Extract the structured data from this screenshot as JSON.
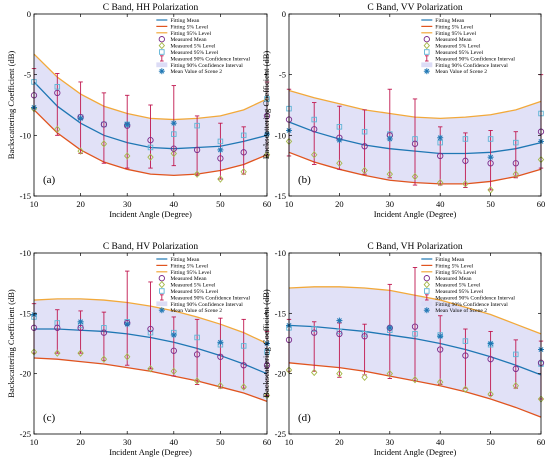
{
  "colors": {
    "mean": "#1f77b4",
    "p5": "#e0541f",
    "p95": "#f2a93b",
    "conf_fill": "#dcdcf6",
    "errbar": "#c0174f",
    "measured_mean": "#7a2a8a",
    "measured_p5": "#a6b84a",
    "measured_p95": "#5fb4d6",
    "scene2": "#1f77b4"
  },
  "legend_labels": [
    "Fitting Mean",
    "Fitting 5% Level",
    "Fitting 95% Level",
    "Measured Mean",
    "Measured 5% Level",
    "Measured 95% Level",
    "Measured 90% Confidence Interval",
    "Fitting 90% Confidence Interval",
    "Mean Value of Scene 2"
  ],
  "chart_data": [
    {
      "type": "line",
      "panel": "(a)",
      "title": "C Band, HH Polarization",
      "xlabel": "Incident Angle (Degree)",
      "ylabel": "Backscattering Coefficient (dB)",
      "xlim": [
        10,
        60
      ],
      "ylim": [
        -15,
        0
      ],
      "xticks": [
        10,
        20,
        30,
        40,
        50,
        60
      ],
      "yticks": [
        0,
        -5,
        -10,
        -15
      ],
      "legend_position": "top-right",
      "fit_x": [
        10,
        15,
        20,
        25,
        30,
        35,
        40,
        45,
        50,
        55,
        60
      ],
      "fit_mean": [
        -5.6,
        -7.6,
        -9.0,
        -10.0,
        -10.6,
        -11.0,
        -11.1,
        -11.0,
        -10.9,
        -10.5,
        -10.0
      ],
      "fit_p5": [
        -7.9,
        -9.8,
        -11.2,
        -12.2,
        -12.8,
        -13.2,
        -13.3,
        -13.2,
        -12.9,
        -12.4,
        -11.6
      ],
      "fit_p95": [
        -3.3,
        -5.2,
        -6.6,
        -7.6,
        -8.2,
        -8.6,
        -8.7,
        -8.6,
        -8.4,
        -7.9,
        -7.0
      ],
      "measured_x": [
        10,
        15,
        20,
        25,
        30,
        35,
        40,
        45,
        50,
        55,
        60
      ],
      "measured_mean": [
        -6.7,
        -6.5,
        -8.5,
        -9.1,
        -9.2,
        -10.4,
        -11.1,
        -11.2,
        -11.9,
        -11.4,
        -8.4
      ],
      "measured_p5": [
        -7.8,
        -9.5,
        -11.3,
        -10.7,
        -11.7,
        -11.8,
        -11.5,
        -13.2,
        -13.6,
        -13.0,
        -11.6
      ],
      "measured_p95": [
        -5.6,
        -6.0,
        -8.5,
        -9.1,
        -9.1,
        -11.0,
        -9.9,
        -9.2,
        -10.5,
        -10.0,
        -7.0
      ],
      "ci_low": [
        -7.8,
        -10.0,
        -11.5,
        -12.3,
        -12.7,
        -12.7,
        -12.5,
        -13.3,
        -13.6,
        -13.2,
        -11.7
      ],
      "ci_high": [
        -4.5,
        -4.9,
        -5.6,
        -6.5,
        -6.7,
        -7.5,
        -5.9,
        -8.4,
        -9.0,
        -9.3,
        -5.6
      ],
      "scene2_x": [
        10,
        20,
        30,
        40,
        50,
        60
      ],
      "scene2_y": [
        -7.7,
        -8.6,
        -9.1,
        -9.0,
        -11.2,
        -9.9
      ]
    },
    {
      "type": "line",
      "panel": "(b)",
      "title": "C Band, VV Polarization",
      "xlabel": "Incident Angle (Degree)",
      "ylabel": "Backscattering Coefficient (dB)",
      "xlim": [
        10,
        60
      ],
      "ylim": [
        -15,
        0
      ],
      "xticks": [
        10,
        20,
        30,
        40,
        50,
        60
      ],
      "yticks": [
        0,
        -5,
        -10,
        -15
      ],
      "legend_position": "top-right",
      "fit_x": [
        10,
        15,
        20,
        25,
        30,
        35,
        40,
        45,
        50,
        55,
        60
      ],
      "fit_mean": [
        -8.9,
        -9.7,
        -10.3,
        -10.8,
        -11.1,
        -11.3,
        -11.5,
        -11.5,
        -11.4,
        -11.1,
        -10.6
      ],
      "fit_p5": [
        -11.4,
        -12.2,
        -12.8,
        -13.3,
        -13.7,
        -13.9,
        -14.0,
        -14.0,
        -13.8,
        -13.4,
        -12.8
      ],
      "fit_p95": [
        -6.3,
        -6.9,
        -7.4,
        -7.9,
        -8.2,
        -8.5,
        -8.6,
        -8.5,
        -8.3,
        -7.9,
        -7.2
      ],
      "measured_x": [
        10,
        15,
        20,
        25,
        30,
        35,
        40,
        45,
        50,
        55,
        60
      ],
      "measured_mean": [
        -8.7,
        -9.5,
        -10.2,
        -10.9,
        -10.0,
        -10.7,
        -11.7,
        -12.1,
        -12.3,
        -12.3,
        -9.7
      ],
      "measured_p5": [
        -10.5,
        -11.6,
        -12.3,
        -12.9,
        -13.2,
        -13.4,
        -13.9,
        -14.0,
        -14.5,
        -13.2,
        -12.0
      ],
      "measured_p95": [
        -7.8,
        -8.7,
        -9.3,
        -9.7,
        -9.9,
        -10.3,
        -10.6,
        -10.3,
        -10.3,
        -10.6,
        -8.2
      ],
      "ci_low": [
        -11.7,
        -12.4,
        -12.8,
        -13.2,
        -13.5,
        -14.1,
        -14.1,
        -14.3,
        -14.5,
        -13.5,
        -12.7
      ],
      "ci_high": [
        -6.2,
        -7.3,
        -7.6,
        -7.9,
        -6.2,
        -7.0,
        -9.3,
        -9.8,
        -9.6,
        -9.7,
        -5.0
      ],
      "scene2_x": [
        10,
        20,
        30,
        40,
        50,
        60
      ],
      "scene2_y": [
        -9.6,
        -10.4,
        -10.3,
        -10.2,
        -11.8,
        -10.5
      ]
    },
    {
      "type": "line",
      "panel": "(c)",
      "title": "C Band, HV Polarization",
      "xlabel": "Incident Angle (Degree)",
      "ylabel": "Backscattering Coefficient (dB)",
      "xlim": [
        10,
        60
      ],
      "ylim": [
        -25,
        -10
      ],
      "xticks": [
        10,
        20,
        30,
        40,
        50,
        60
      ],
      "yticks": [
        -10,
        -15,
        -20,
        -25
      ],
      "legend_position": "top-right",
      "fit_x": [
        10,
        15,
        20,
        25,
        30,
        35,
        40,
        45,
        50,
        55,
        60
      ],
      "fit_mean": [
        -16.3,
        -16.3,
        -16.4,
        -16.5,
        -16.7,
        -17.0,
        -17.4,
        -17.9,
        -18.5,
        -19.2,
        -20.0
      ],
      "fit_p5": [
        -18.7,
        -18.8,
        -19.0,
        -19.2,
        -19.5,
        -19.8,
        -20.2,
        -20.6,
        -21.1,
        -21.6,
        -22.3
      ],
      "fit_p95": [
        -13.9,
        -13.8,
        -13.8,
        -13.9,
        -14.1,
        -14.4,
        -14.8,
        -15.3,
        -15.9,
        -16.6,
        -17.5
      ],
      "measured_x": [
        10,
        15,
        20,
        25,
        30,
        35,
        40,
        45,
        50,
        55,
        60
      ],
      "measured_mean": [
        -16.2,
        -16.2,
        -16.2,
        -16.6,
        -15.8,
        -16.3,
        -18.1,
        -18.4,
        -18.6,
        -19.3,
        -19.3
      ],
      "measured_p5": [
        -18.2,
        -18.3,
        -18.3,
        -18.8,
        -18.6,
        -19.6,
        -19.8,
        -20.6,
        -21.0,
        -21.1,
        -21.8
      ],
      "measured_p95": [
        -15.3,
        -15.8,
        -16.0,
        -16.2,
        -15.7,
        -16.6,
        -16.6,
        -17.0,
        -17.6,
        -17.7,
        -18.2
      ],
      "ci_low": [
        -18.3,
        -18.3,
        -18.3,
        -18.9,
        -19.3,
        -19.6,
        -20.2,
        -20.9,
        -21.2,
        -21.2,
        -21.8
      ],
      "ci_high": [
        -14.2,
        -14.7,
        -14.8,
        -14.9,
        -11.5,
        -12.4,
        -15.3,
        -15.5,
        -15.4,
        -15.5,
        -16.5
      ],
      "scene2_x": [
        10,
        20,
        30,
        40,
        50,
        60
      ],
      "scene2_y": [
        -15.1,
        -15.7,
        -15.9,
        -16.8,
        -17.4,
        -17.5
      ]
    },
    {
      "type": "line",
      "panel": "(d)",
      "title": "C Band, VH Polarization",
      "xlabel": "Incident Angle (Degree)",
      "ylabel": "Backscattering Coefficient (dB)",
      "xlim": [
        10,
        60
      ],
      "ylim": [
        -25,
        -10
      ],
      "xticks": [
        10,
        20,
        30,
        40,
        50,
        60
      ],
      "yticks": [
        -10,
        -15,
        -20,
        -25
      ],
      "legend_position": "top-right",
      "fit_x": [
        10,
        15,
        20,
        25,
        30,
        35,
        40,
        45,
        50,
        55,
        60
      ],
      "fit_mean": [
        -16.0,
        -16.1,
        -16.3,
        -16.5,
        -16.8,
        -17.1,
        -17.5,
        -18.0,
        -18.6,
        -19.3,
        -20.1
      ],
      "fit_p5": [
        -19.1,
        -19.3,
        -19.5,
        -19.8,
        -20.2,
        -20.6,
        -21.0,
        -21.5,
        -22.1,
        -22.8,
        -23.6
      ],
      "fit_p95": [
        -12.9,
        -12.8,
        -12.8,
        -12.9,
        -13.1,
        -13.5,
        -13.9,
        -14.5,
        -15.1,
        -15.9,
        -16.7
      ],
      "measured_x": [
        10,
        15,
        20,
        25,
        30,
        35,
        40,
        45,
        50,
        55,
        60
      ],
      "measured_mean": [
        -17.2,
        -16.6,
        -16.7,
        -16.9,
        -16.2,
        -16.1,
        -18.0,
        -18.5,
        -18.8,
        -19.6,
        -19.1
      ],
      "measured_p5": [
        -19.7,
        -19.9,
        -20.0,
        -20.3,
        -20.0,
        -20.5,
        -20.7,
        -21.3,
        -21.7,
        -21.0,
        -22.1
      ],
      "measured_p95": [
        -16.2,
        -16.3,
        -16.5,
        -16.7,
        -16.4,
        -16.7,
        -16.8,
        -17.3,
        -17.6,
        -18.4,
        -19.2
      ],
      "ci_low": [
        -19.8,
        -19.8,
        -20.3,
        -20.1,
        -20.4,
        -20.6,
        -20.9,
        -21.2,
        -21.8,
        -21.2,
        -22.1
      ],
      "ci_high": [
        -15.5,
        -15.7,
        -15.8,
        -15.9,
        -12.6,
        -11.2,
        -15.2,
        -16.3,
        -16.5,
        -17.2,
        -17.3
      ],
      "scene2_x": [
        10,
        20,
        30,
        40,
        50,
        60
      ],
      "scene2_y": [
        -16.0,
        -15.6,
        -16.2,
        -16.9,
        -17.5,
        -18.0
      ]
    }
  ]
}
